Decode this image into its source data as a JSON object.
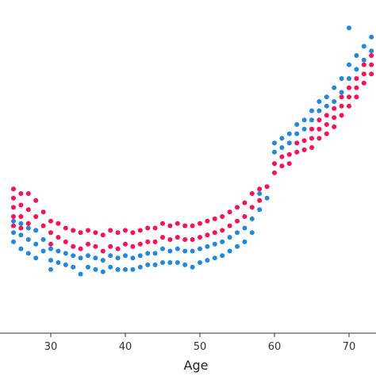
{
  "chart_data": {
    "type": "scatter",
    "title": "",
    "xlabel": "Age",
    "ylabel": "",
    "xlim": [
      23.5,
      73.5
    ],
    "xticks": [
      30,
      40,
      50,
      60,
      70
    ],
    "grid": false,
    "legend": "none",
    "colors": {
      "high": "#ff0d57",
      "low": "#1e88e5"
    },
    "series": [
      {
        "color_key": "high",
        "points": [
          [
            25,
            0.62
          ],
          [
            25,
            0.58
          ],
          [
            25,
            0.54
          ],
          [
            25,
            0.5
          ],
          [
            25,
            0.46
          ],
          [
            26,
            0.6
          ],
          [
            26,
            0.55
          ],
          [
            26,
            0.5
          ],
          [
            26,
            0.45
          ],
          [
            27,
            0.6
          ],
          [
            27,
            0.53
          ],
          [
            27,
            0.47
          ],
          [
            28,
            0.57
          ],
          [
            28,
            0.5
          ],
          [
            28,
            0.44
          ],
          [
            29,
            0.52
          ],
          [
            29,
            0.46
          ],
          [
            30,
            0.48
          ],
          [
            30,
            0.43
          ],
          [
            30,
            0.38
          ],
          [
            31,
            0.47
          ],
          [
            31,
            0.41
          ],
          [
            32,
            0.45
          ],
          [
            32,
            0.39
          ],
          [
            33,
            0.44
          ],
          [
            33,
            0.37
          ],
          [
            34,
            0.43
          ],
          [
            34,
            0.36
          ],
          [
            35,
            0.44
          ],
          [
            35,
            0.38
          ],
          [
            36,
            0.43
          ],
          [
            36,
            0.37
          ],
          [
            37,
            0.42
          ],
          [
            37,
            0.35
          ],
          [
            38,
            0.44
          ],
          [
            38,
            0.37
          ],
          [
            39,
            0.43
          ],
          [
            39,
            0.36
          ],
          [
            40,
            0.44
          ],
          [
            40,
            0.38
          ],
          [
            41,
            0.43
          ],
          [
            41,
            0.37
          ],
          [
            42,
            0.44
          ],
          [
            42,
            0.38
          ],
          [
            43,
            0.45
          ],
          [
            43,
            0.39
          ],
          [
            44,
            0.45
          ],
          [
            44,
            0.39
          ],
          [
            45,
            0.47
          ],
          [
            45,
            0.41
          ],
          [
            46,
            0.46
          ],
          [
            46,
            0.4
          ],
          [
            47,
            0.47
          ],
          [
            47,
            0.41
          ],
          [
            48,
            0.46
          ],
          [
            48,
            0.4
          ],
          [
            49,
            0.46
          ],
          [
            49,
            0.4
          ],
          [
            50,
            0.47
          ],
          [
            50,
            0.41
          ],
          [
            51,
            0.48
          ],
          [
            51,
            0.42
          ],
          [
            52,
            0.49
          ],
          [
            52,
            0.43
          ],
          [
            53,
            0.5
          ],
          [
            53,
            0.44
          ],
          [
            54,
            0.52
          ],
          [
            54,
            0.46
          ],
          [
            55,
            0.54
          ],
          [
            55,
            0.48
          ],
          [
            56,
            0.56
          ],
          [
            56,
            0.5
          ],
          [
            57,
            0.6
          ],
          [
            57,
            0.54
          ],
          [
            58,
            0.62
          ],
          [
            58,
            0.57
          ],
          [
            59,
            0.63
          ],
          [
            60,
            0.69
          ],
          [
            60,
            0.73
          ],
          [
            61,
            0.72
          ],
          [
            61,
            0.76
          ],
          [
            62,
            0.73
          ],
          [
            62,
            0.77
          ],
          [
            63,
            0.78
          ],
          [
            63,
            0.82
          ],
          [
            64,
            0.79
          ],
          [
            64,
            0.83
          ],
          [
            65,
            0.8
          ],
          [
            65,
            0.84
          ],
          [
            65,
            0.88
          ],
          [
            66,
            0.84
          ],
          [
            66,
            0.88
          ],
          [
            66,
            0.92
          ],
          [
            67,
            0.86
          ],
          [
            67,
            0.9
          ],
          [
            67,
            0.94
          ],
          [
            68,
            0.89
          ],
          [
            68,
            0.93
          ],
          [
            68,
            0.97
          ],
          [
            69,
            0.94
          ],
          [
            69,
            0.98
          ],
          [
            69,
            1.02
          ],
          [
            70,
            0.98
          ],
          [
            70,
            1.02
          ],
          [
            70,
            1.06
          ],
          [
            71,
            1.02
          ],
          [
            71,
            1.06
          ],
          [
            71,
            1.1
          ],
          [
            72,
            1.08
          ],
          [
            72,
            1.12
          ],
          [
            72,
            1.16
          ],
          [
            73,
            1.12
          ],
          [
            73,
            1.16
          ],
          [
            73,
            1.2
          ]
        ]
      },
      {
        "color_key": "low",
        "points": [
          [
            25,
            0.48
          ],
          [
            25,
            0.43
          ],
          [
            25,
            0.39
          ],
          [
            26,
            0.47
          ],
          [
            26,
            0.42
          ],
          [
            26,
            0.36
          ],
          [
            27,
            0.45
          ],
          [
            27,
            0.4
          ],
          [
            27,
            0.34
          ],
          [
            28,
            0.44
          ],
          [
            28,
            0.38
          ],
          [
            28,
            0.32
          ],
          [
            29,
            0.4
          ],
          [
            29,
            0.35
          ],
          [
            30,
            0.36
          ],
          [
            30,
            0.31
          ],
          [
            30,
            0.27
          ],
          [
            31,
            0.35
          ],
          [
            31,
            0.3
          ],
          [
            32,
            0.34
          ],
          [
            32,
            0.29
          ],
          [
            33,
            0.33
          ],
          [
            33,
            0.28
          ],
          [
            34,
            0.32
          ],
          [
            34,
            0.25
          ],
          [
            35,
            0.33
          ],
          [
            35,
            0.28
          ],
          [
            36,
            0.32
          ],
          [
            36,
            0.27
          ],
          [
            37,
            0.31
          ],
          [
            37,
            0.26
          ],
          [
            38,
            0.33
          ],
          [
            38,
            0.28
          ],
          [
            39,
            0.32
          ],
          [
            39,
            0.27
          ],
          [
            40,
            0.33
          ],
          [
            40,
            0.27
          ],
          [
            41,
            0.32
          ],
          [
            41,
            0.27
          ],
          [
            42,
            0.33
          ],
          [
            42,
            0.28
          ],
          [
            43,
            0.34
          ],
          [
            43,
            0.29
          ],
          [
            44,
            0.34
          ],
          [
            44,
            0.29
          ],
          [
            45,
            0.36
          ],
          [
            45,
            0.3
          ],
          [
            46,
            0.35
          ],
          [
            46,
            0.3
          ],
          [
            47,
            0.36
          ],
          [
            47,
            0.3
          ],
          [
            48,
            0.35
          ],
          [
            48,
            0.29
          ],
          [
            49,
            0.35
          ],
          [
            49,
            0.28
          ],
          [
            50,
            0.36
          ],
          [
            50,
            0.3
          ],
          [
            51,
            0.37
          ],
          [
            51,
            0.31
          ],
          [
            52,
            0.38
          ],
          [
            52,
            0.32
          ],
          [
            53,
            0.39
          ],
          [
            53,
            0.33
          ],
          [
            54,
            0.41
          ],
          [
            54,
            0.35
          ],
          [
            55,
            0.43
          ],
          [
            55,
            0.37
          ],
          [
            56,
            0.45
          ],
          [
            56,
            0.39
          ],
          [
            57,
            0.49
          ],
          [
            57,
            0.43
          ],
          [
            58,
            0.53
          ],
          [
            58,
            0.6
          ],
          [
            59,
            0.58
          ],
          [
            60,
            0.78
          ],
          [
            60,
            0.82
          ],
          [
            61,
            0.8
          ],
          [
            61,
            0.84
          ],
          [
            62,
            0.82
          ],
          [
            62,
            0.86
          ],
          [
            63,
            0.86
          ],
          [
            63,
            0.9
          ],
          [
            64,
            0.88
          ],
          [
            64,
            0.92
          ],
          [
            65,
            0.92
          ],
          [
            65,
            0.96
          ],
          [
            66,
            0.96
          ],
          [
            66,
            1.0
          ],
          [
            67,
            0.98
          ],
          [
            67,
            1.02
          ],
          [
            68,
            1.0
          ],
          [
            68,
            1.06
          ],
          [
            69,
            1.04
          ],
          [
            69,
            1.1
          ],
          [
            70,
            1.1
          ],
          [
            70,
            1.16
          ],
          [
            70,
            1.32
          ],
          [
            71,
            1.14
          ],
          [
            71,
            1.2
          ],
          [
            72,
            1.18
          ],
          [
            72,
            1.24
          ],
          [
            73,
            1.22
          ],
          [
            73,
            1.28
          ]
        ]
      }
    ]
  }
}
